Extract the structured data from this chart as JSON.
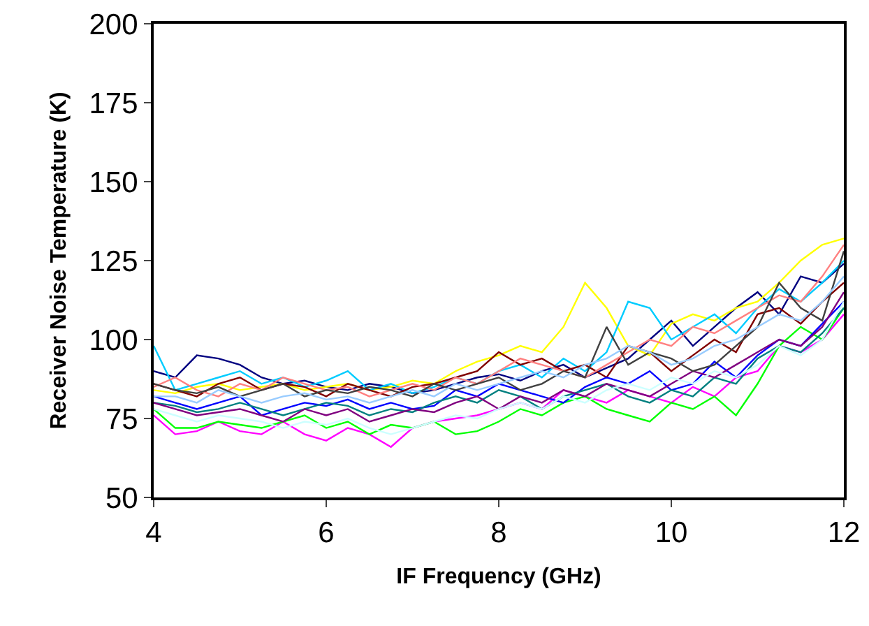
{
  "chart_data": {
    "type": "line",
    "xlabel": "IF Frequency (GHz)",
    "ylabel": "Receiver Noise Temperature (K)",
    "x": [
      4,
      4.25,
      4.5,
      4.75,
      5,
      5.25,
      5.5,
      5.75,
      6,
      6.25,
      6.5,
      6.75,
      7,
      7.25,
      7.5,
      7.75,
      8,
      8.25,
      8.5,
      8.75,
      9,
      9.25,
      9.5,
      9.75,
      10,
      10.25,
      10.5,
      10.75,
      11,
      11.25,
      11.5,
      11.75,
      12
    ],
    "xlim": [
      4,
      12
    ],
    "xticks": [
      4,
      6,
      8,
      10,
      12
    ],
    "ylim": [
      50,
      200
    ],
    "yticks": [
      50,
      75,
      100,
      125,
      150,
      175,
      200
    ],
    "grid": false,
    "marker": "none",
    "line_style": "solid",
    "series": [
      {
        "color": "#000080",
        "values": [
          90,
          88,
          95,
          94,
          92,
          88,
          86,
          87,
          85,
          84,
          86,
          85,
          83,
          84,
          86,
          88,
          89,
          87,
          90,
          92,
          88,
          91,
          94,
          100,
          106,
          98,
          104,
          110,
          115,
          108,
          120,
          118,
          124
        ]
      },
      {
        "color": "#ffff00",
        "values": [
          84,
          83,
          85,
          86,
          84,
          85,
          86,
          84,
          85,
          86,
          84,
          85,
          87,
          86,
          90,
          93,
          95,
          98,
          96,
          104,
          118,
          110,
          98,
          95,
          105,
          108,
          106,
          110,
          112,
          118,
          125,
          130,
          132
        ]
      },
      {
        "color": "#00ccff",
        "values": [
          98,
          84,
          86,
          88,
          90,
          86,
          88,
          85,
          87,
          90,
          84,
          86,
          83,
          85,
          88,
          86,
          90,
          92,
          88,
          94,
          90,
          96,
          112,
          110,
          100,
          104,
          108,
          102,
          110,
          116,
          112,
          118,
          125
        ]
      },
      {
        "color": "#ff00ff",
        "values": [
          76,
          70,
          71,
          74,
          71,
          70,
          74,
          70,
          68,
          72,
          70,
          66,
          72,
          74,
          75,
          76,
          78,
          80,
          78,
          84,
          82,
          80,
          84,
          82,
          80,
          85,
          82,
          88,
          90,
          98,
          96,
          100,
          108
        ]
      },
      {
        "color": "#00ff00",
        "values": [
          78,
          72,
          72,
          74,
          73,
          72,
          74,
          76,
          72,
          74,
          70,
          73,
          72,
          74,
          70,
          71,
          74,
          78,
          76,
          80,
          82,
          78,
          76,
          74,
          80,
          78,
          82,
          76,
          86,
          98,
          104,
          100,
          110
        ]
      },
      {
        "color": "#800000",
        "values": [
          86,
          84,
          82,
          86,
          88,
          84,
          86,
          85,
          82,
          86,
          84,
          82,
          85,
          86,
          88,
          90,
          96,
          92,
          94,
          90,
          92,
          88,
          98,
          96,
          90,
          95,
          100,
          96,
          108,
          110,
          105,
          112,
          118
        ]
      },
      {
        "color": "#ff8080",
        "values": [
          85,
          88,
          84,
          82,
          86,
          84,
          88,
          86,
          84,
          85,
          82,
          84,
          86,
          84,
          88,
          86,
          90,
          94,
          92,
          90,
          88,
          92,
          96,
          100,
          98,
          104,
          102,
          106,
          110,
          114,
          112,
          120,
          130
        ]
      },
      {
        "color": "#0000ff",
        "values": [
          82,
          80,
          78,
          80,
          82,
          76,
          78,
          80,
          79,
          81,
          78,
          80,
          78,
          79,
          84,
          82,
          86,
          84,
          82,
          80,
          85,
          88,
          86,
          90,
          84,
          86,
          93,
          88,
          95,
          100,
          98,
          105,
          112
        ]
      },
      {
        "color": "#008080",
        "values": [
          80,
          79,
          77,
          78,
          80,
          78,
          76,
          78,
          80,
          79,
          76,
          78,
          77,
          80,
          82,
          80,
          84,
          82,
          78,
          82,
          84,
          86,
          82,
          80,
          84,
          82,
          88,
          86,
          94,
          98,
          96,
          102,
          110
        ]
      },
      {
        "color": "#800080",
        "values": [
          80,
          78,
          76,
          77,
          78,
          76,
          74,
          78,
          76,
          78,
          74,
          76,
          78,
          77,
          80,
          82,
          78,
          82,
          80,
          84,
          82,
          86,
          84,
          82,
          86,
          90,
          88,
          92,
          96,
          100,
          98,
          104,
          115
        ]
      },
      {
        "color": "#ccffff",
        "values": [
          78,
          76,
          74,
          76,
          75,
          74,
          72,
          74,
          73,
          75,
          72,
          70,
          72,
          74,
          76,
          75,
          78,
          80,
          78,
          82,
          80,
          84,
          86,
          84,
          88,
          86,
          90,
          88,
          92,
          98,
          95,
          100,
          112
        ]
      },
      {
        "color": "#404040",
        "values": [
          86,
          84,
          83,
          85,
          82,
          84,
          86,
          82,
          84,
          83,
          85,
          84,
          82,
          86,
          84,
          86,
          88,
          84,
          86,
          90,
          88,
          104,
          92,
          96,
          94,
          90,
          92,
          98,
          104,
          118,
          110,
          106,
          128
        ]
      },
      {
        "color": "#99ccff",
        "values": [
          82,
          82,
          80,
          84,
          82,
          80,
          82,
          83,
          81,
          82,
          80,
          82,
          84,
          82,
          86,
          84,
          86,
          88,
          90,
          88,
          92,
          94,
          98,
          96,
          92,
          94,
          98,
          100,
          104,
          108,
          106,
          112,
          120
        ]
      }
    ]
  }
}
